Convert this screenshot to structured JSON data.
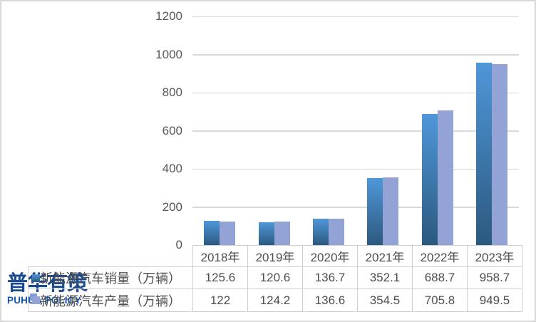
{
  "frame": {
    "background": "#ffffff",
    "border_color": "#d9d9d9"
  },
  "logo": {
    "name_cjk": "普华有策",
    "name_latin": "PUHUA POLICY",
    "color_cjk": "#1b4b8f",
    "color_latin": "#1456ac",
    "square_color": "#7f9ed4"
  },
  "chart_data": {
    "type": "bar",
    "title": "",
    "categories": [
      "2018年",
      "2019年",
      "2020年",
      "2021年",
      "2022年",
      "2023年"
    ],
    "series": [
      {
        "name": "新能源汽车销量（万辆）",
        "values": [
          125.6,
          120.6,
          136.7,
          352.1,
          688.7,
          958.7
        ],
        "fill": {
          "style": "gradient",
          "top": "#4f97da",
          "bottom": "#2b597e"
        }
      },
      {
        "name": "新能源汽车产量（万辆）",
        "values": [
          122,
          124.2,
          136.6,
          354.5,
          705.8,
          949.5
        ],
        "fill": {
          "style": "solid",
          "color": "#94a3d6"
        }
      }
    ],
    "ylim": [
      0,
      1200
    ],
    "yticks": [
      0,
      200,
      400,
      600,
      800,
      1000,
      1200
    ],
    "grid": true,
    "legend_position": "table-keys",
    "gridline_color": "#d9d9d9",
    "table_border_color": "#cfcfcf",
    "axis_text_color": "#575757",
    "table_text_color": "#4e4e4e"
  }
}
